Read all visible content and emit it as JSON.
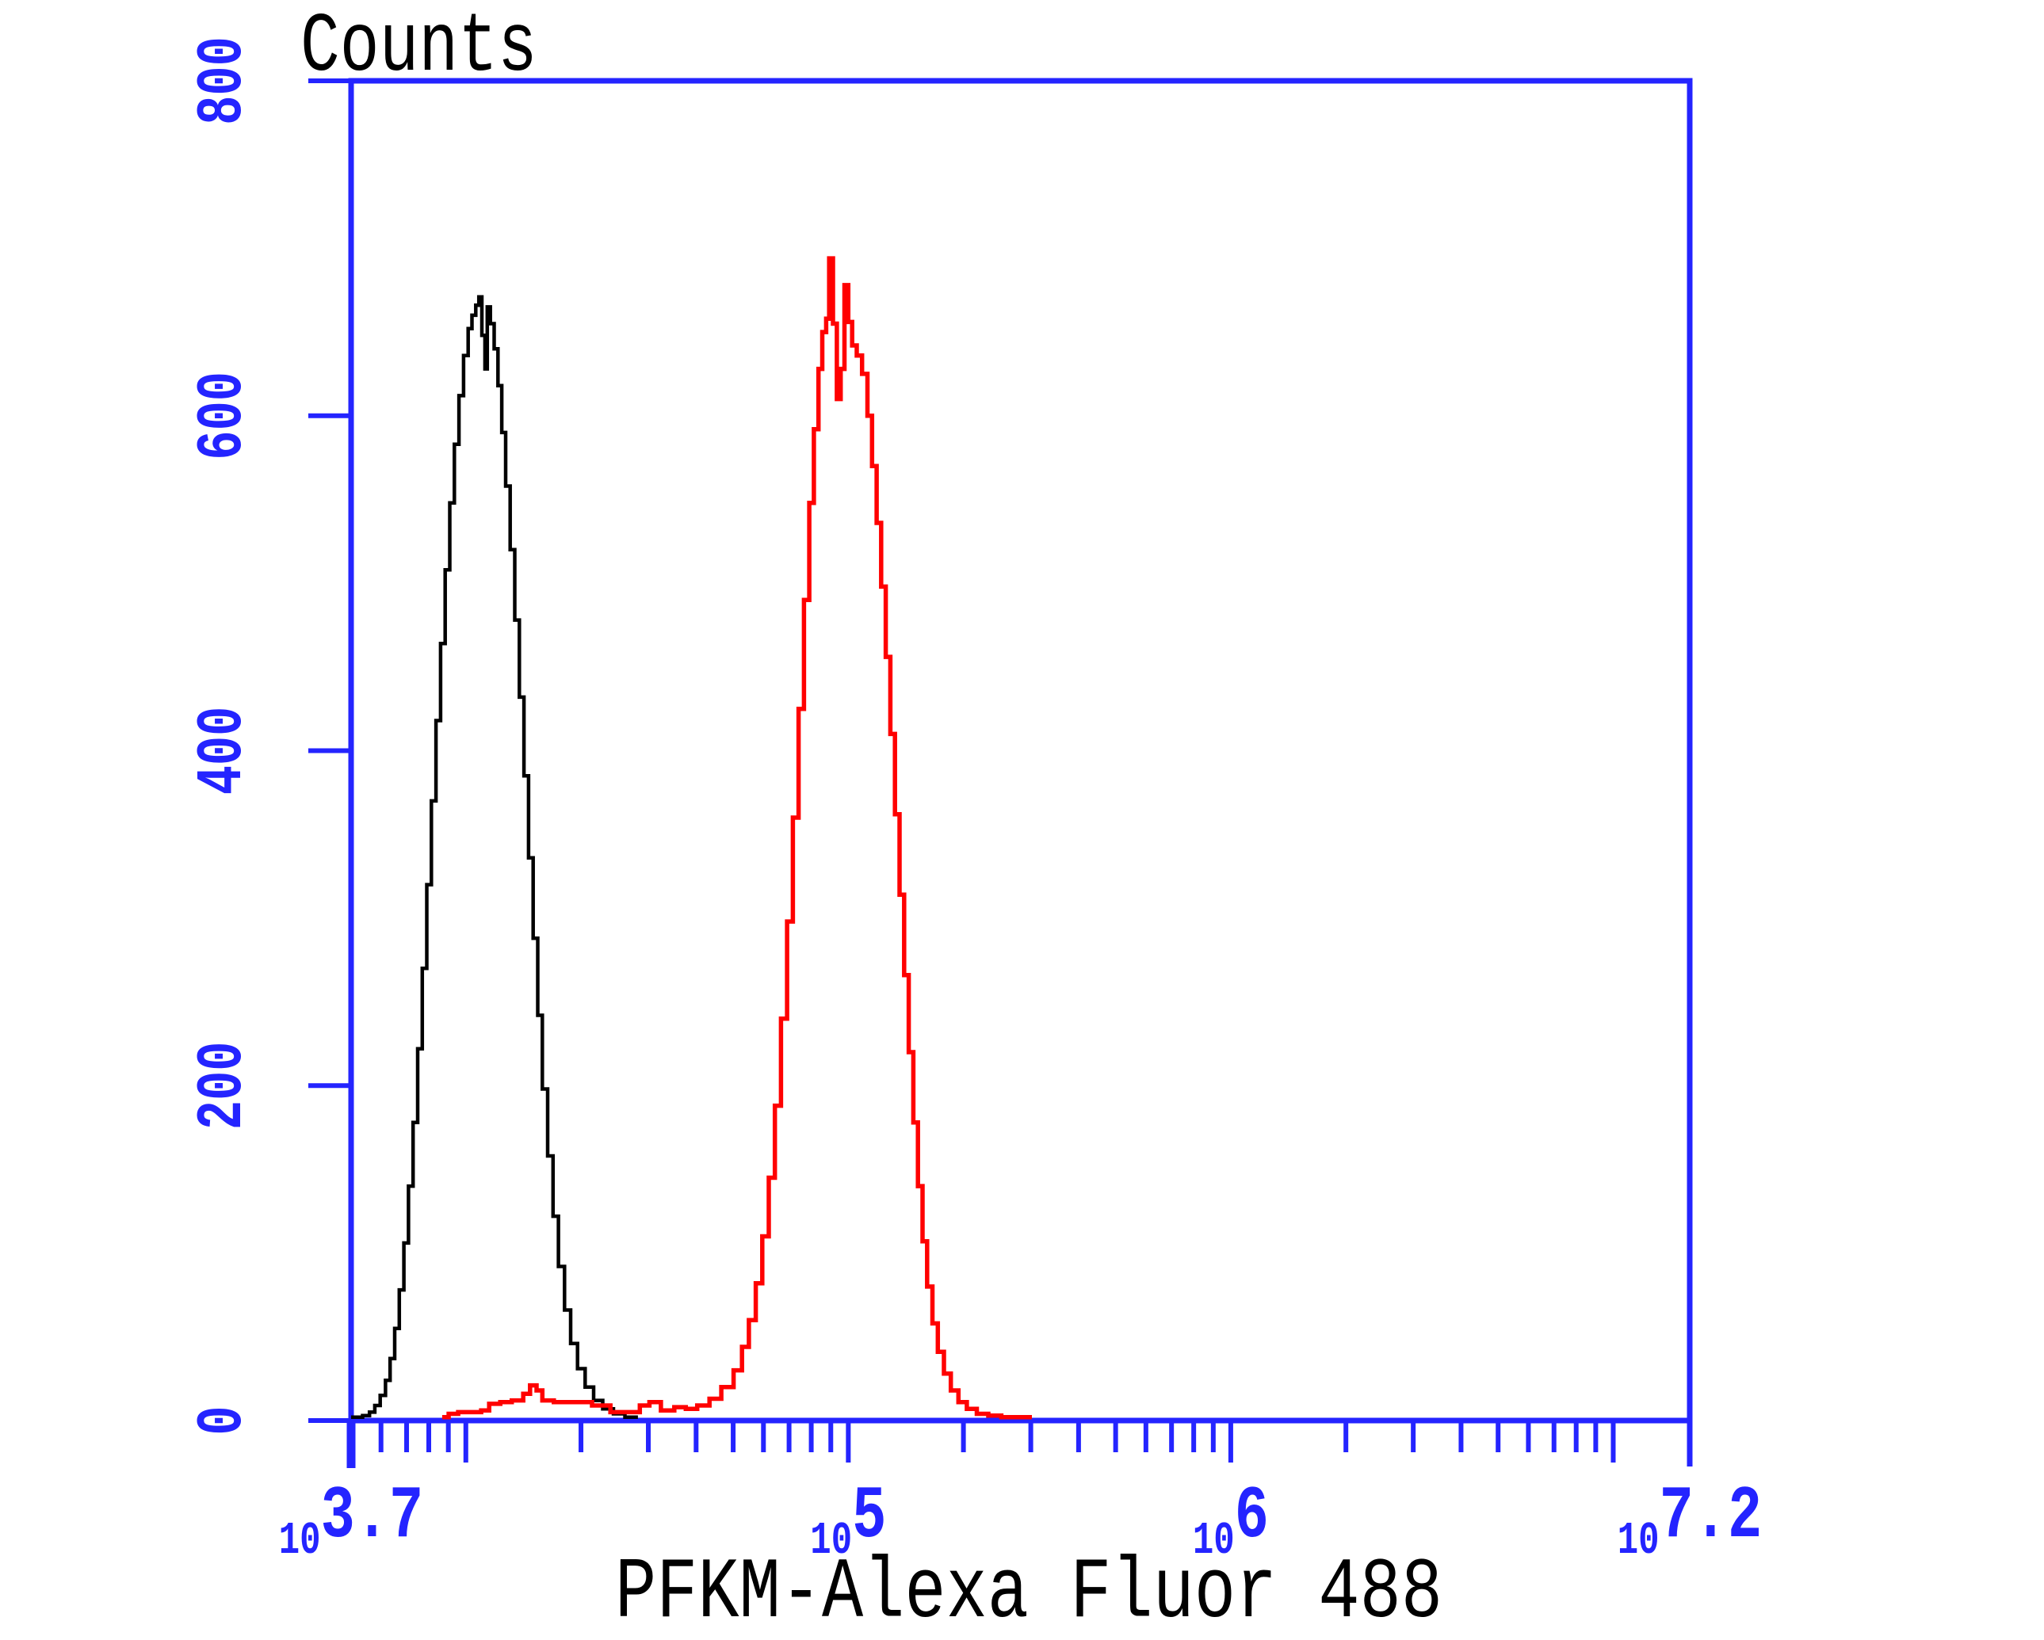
{
  "title": {
    "text": "Counts"
  },
  "x_axis": {
    "label": "PFKM-Alexa Fluor 488",
    "scale": "log10",
    "log_min": 3.7,
    "log_max": 7.2,
    "end_ticks": [
      3.7,
      7.2
    ],
    "major_ticks": [
      4,
      5,
      6,
      7
    ],
    "labeled_ticks": [
      {
        "log": 3.7,
        "base": "10",
        "exp": "3.7"
      },
      {
        "log": 5.0,
        "base": "10",
        "exp": "5"
      },
      {
        "log": 6.0,
        "base": "10",
        "exp": "6"
      },
      {
        "log": 7.2,
        "base": "10",
        "exp": "7.2"
      }
    ]
  },
  "y_axis": {
    "label": "Counts",
    "min": 0,
    "max": 800,
    "ticks": [
      0,
      200,
      400,
      600,
      800
    ]
  },
  "colors": {
    "axis": "#2424ff",
    "background": "#ffffff",
    "control_series": "#000000",
    "stained_series": "#ff0000"
  },
  "chart_data": {
    "type": "line",
    "title": "Counts",
    "xlabel": "PFKM-Alexa Fluor 488",
    "ylabel": "Counts",
    "x_scale": "log10",
    "xlim_log10": [
      3.7,
      7.2
    ],
    "ylim": [
      0,
      800
    ],
    "grid": false,
    "legend": "none",
    "series": [
      {
        "name": "control (black)",
        "color_key": "control_series",
        "stroke_width": 4.5,
        "peak": {
          "x_log10": 4.03,
          "counts": 671
        },
        "points": [
          [
            3.7,
            2
          ],
          [
            3.715,
            2
          ],
          [
            3.73,
            3
          ],
          [
            3.748,
            5
          ],
          [
            3.762,
            9
          ],
          [
            3.776,
            15
          ],
          [
            3.79,
            24
          ],
          [
            3.802,
            37
          ],
          [
            3.814,
            55
          ],
          [
            3.826,
            78
          ],
          [
            3.838,
            106
          ],
          [
            3.85,
            140
          ],
          [
            3.862,
            178
          ],
          [
            3.874,
            222
          ],
          [
            3.886,
            270
          ],
          [
            3.898,
            320
          ],
          [
            3.91,
            370
          ],
          [
            3.922,
            418
          ],
          [
            3.934,
            464
          ],
          [
            3.946,
            508
          ],
          [
            3.958,
            548
          ],
          [
            3.97,
            583
          ],
          [
            3.982,
            612
          ],
          [
            3.994,
            636
          ],
          [
            4.006,
            652
          ],
          [
            4.016,
            660
          ],
          [
            4.026,
            666
          ],
          [
            4.034,
            671
          ],
          [
            4.042,
            648
          ],
          [
            4.05,
            628
          ],
          [
            4.056,
            665
          ],
          [
            4.064,
            655
          ],
          [
            4.074,
            640
          ],
          [
            4.084,
            618
          ],
          [
            4.094,
            590
          ],
          [
            4.104,
            558
          ],
          [
            4.116,
            520
          ],
          [
            4.128,
            478
          ],
          [
            4.14,
            432
          ],
          [
            4.152,
            385
          ],
          [
            4.164,
            336
          ],
          [
            4.176,
            288
          ],
          [
            4.188,
            242
          ],
          [
            4.2,
            198
          ],
          [
            4.214,
            158
          ],
          [
            4.228,
            122
          ],
          [
            4.242,
            92
          ],
          [
            4.258,
            66
          ],
          [
            4.274,
            46
          ],
          [
            4.292,
            31
          ],
          [
            4.312,
            20
          ],
          [
            4.334,
            12
          ],
          [
            4.358,
            7
          ],
          [
            4.386,
            4
          ],
          [
            4.416,
            2
          ],
          [
            4.45,
            2
          ]
        ]
      },
      {
        "name": "PFKM-Alexa Fluor 488 (red)",
        "color_key": "stained_series",
        "stroke_width": 5.5,
        "peak": {
          "x_log10": 4.95,
          "counts": 694
        },
        "points": [
          [
            3.938,
            2
          ],
          [
            3.955,
            4
          ],
          [
            3.98,
            5
          ],
          [
            4.01,
            5
          ],
          [
            4.04,
            6
          ],
          [
            4.061,
            10
          ],
          [
            4.09,
            11
          ],
          [
            4.12,
            12
          ],
          [
            4.15,
            16
          ],
          [
            4.168,
            21
          ],
          [
            4.185,
            18
          ],
          [
            4.2,
            12
          ],
          [
            4.23,
            11
          ],
          [
            4.28,
            11
          ],
          [
            4.33,
            9
          ],
          [
            4.378,
            5
          ],
          [
            4.42,
            5
          ],
          [
            4.455,
            9
          ],
          [
            4.48,
            11
          ],
          [
            4.51,
            6
          ],
          [
            4.545,
            8
          ],
          [
            4.575,
            7
          ],
          [
            4.605,
            9
          ],
          [
            4.637,
            13
          ],
          [
            4.668,
            20
          ],
          [
            4.7,
            30
          ],
          [
            4.722,
            44
          ],
          [
            4.74,
            60
          ],
          [
            4.758,
            82
          ],
          [
            4.775,
            110
          ],
          [
            4.792,
            145
          ],
          [
            4.808,
            188
          ],
          [
            4.824,
            240
          ],
          [
            4.84,
            298
          ],
          [
            4.855,
            360
          ],
          [
            4.87,
            425
          ],
          [
            4.884,
            490
          ],
          [
            4.898,
            548
          ],
          [
            4.91,
            592
          ],
          [
            4.922,
            628
          ],
          [
            4.932,
            650
          ],
          [
            4.942,
            658
          ],
          [
            4.95,
            694
          ],
          [
            4.96,
            655
          ],
          [
            4.97,
            610
          ],
          [
            4.98,
            628
          ],
          [
            4.99,
            678
          ],
          [
            5.0,
            656
          ],
          [
            5.01,
            642
          ],
          [
            5.022,
            636
          ],
          [
            5.036,
            625
          ],
          [
            5.05,
            600
          ],
          [
            5.062,
            570
          ],
          [
            5.074,
            536
          ],
          [
            5.086,
            498
          ],
          [
            5.098,
            456
          ],
          [
            5.11,
            410
          ],
          [
            5.122,
            362
          ],
          [
            5.134,
            314
          ],
          [
            5.146,
            266
          ],
          [
            5.158,
            220
          ],
          [
            5.17,
            178
          ],
          [
            5.182,
            140
          ],
          [
            5.194,
            107
          ],
          [
            5.206,
            80
          ],
          [
            5.22,
            58
          ],
          [
            5.234,
            41
          ],
          [
            5.25,
            28
          ],
          [
            5.268,
            18
          ],
          [
            5.288,
            11
          ],
          [
            5.31,
            7
          ],
          [
            5.336,
            4
          ],
          [
            5.366,
            3
          ],
          [
            5.4,
            2
          ],
          [
            5.45,
            2
          ],
          [
            5.48,
            2
          ]
        ]
      }
    ]
  }
}
